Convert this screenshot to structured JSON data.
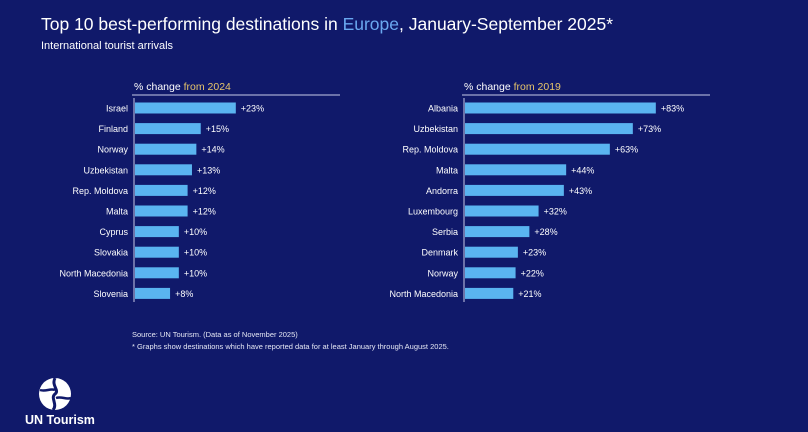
{
  "header": {
    "title_pre": "Top 10 best-performing destinations in ",
    "title_highlight": "Europe",
    "title_post": ", January-September 2025*",
    "subtitle": "International tourist arrivals"
  },
  "colors": {
    "background": "#10196a",
    "bar": "#5ab4f0",
    "highlight_year": "#e8c56a",
    "highlight_region": "#6aa8f0"
  },
  "chart_data": [
    {
      "type": "bar",
      "orientation": "horizontal",
      "title_pre": "% change ",
      "title_highlight": "from 2024",
      "categories": [
        "Israel",
        "Finland",
        "Norway",
        "Uzbekistan",
        "Rep. Moldova",
        "Malta",
        "Cyprus",
        "Slovakia",
        "North Macedonia",
        "Slovenia"
      ],
      "values": [
        23,
        15,
        14,
        13,
        12,
        12,
        10,
        10,
        10,
        8
      ],
      "labels": [
        "+23%",
        "+15%",
        "+14%",
        "+13%",
        "+12%",
        "+12%",
        "+10%",
        "+10%",
        "+10%",
        "+8%"
      ],
      "xlim": [
        0,
        47
      ]
    },
    {
      "type": "bar",
      "orientation": "horizontal",
      "title_pre": "% change ",
      "title_highlight": "from 2019",
      "categories": [
        "Albania",
        "Uzbekistan",
        "Rep. Moldova",
        "Malta",
        "Andorra",
        "Luxembourg",
        "Serbia",
        "Denmark",
        "Norway",
        "North Macedonia"
      ],
      "values": [
        83,
        73,
        63,
        44,
        43,
        32,
        28,
        23,
        22,
        21
      ],
      "labels": [
        "+83%",
        "+73%",
        "+63%",
        "+44%",
        "+43%",
        "+32%",
        "+28%",
        "+23%",
        "+22%",
        "+21%"
      ],
      "xlim": [
        0,
        107
      ]
    }
  ],
  "footer": {
    "source": "Source: UN Tourism. (Data as of November 2025)",
    "note": "* Graphs show destinations which have reported data for at least January through August 2025.",
    "logo_text": "UN Tourism"
  }
}
